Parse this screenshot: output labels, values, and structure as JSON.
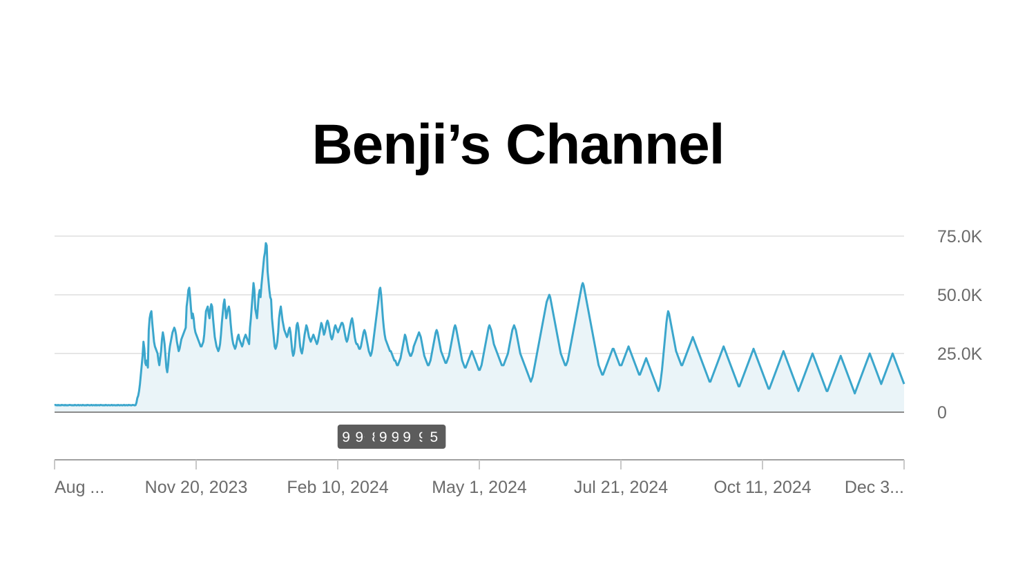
{
  "chart_data": {
    "type": "area",
    "title": "Benji’s Channel",
    "x_tick_labels": [
      "Aug ...",
      "Nov 20, 2023",
      "Feb 10, 2024",
      "May 1, 2024",
      "Jul 21, 2024",
      "Oct 11, 2024",
      "Dec 3..."
    ],
    "y_tick_labels": [
      "75.0K",
      "50.0K",
      "25.0K",
      "0"
    ],
    "y_tick_values": [
      75000,
      50000,
      25000,
      0
    ],
    "ylim": [
      0,
      75000
    ],
    "x_start": "2023-08-30",
    "grid": true,
    "line_color": "#3ba6cc",
    "fill_color": "#eaf4f8",
    "badges": [
      {
        "date": "2024-07-31",
        "label": "9+"
      },
      {
        "date": "2024-08-15",
        "label": "9+"
      },
      {
        "date": "2024-08-29",
        "label": "8"
      },
      {
        "date": "2024-09-11",
        "label": "9+"
      },
      {
        "date": "2024-09-25",
        "label": "9+"
      },
      {
        "date": "2024-10-08",
        "label": "9+"
      },
      {
        "date": "2024-10-21",
        "label": "9"
      },
      {
        "date": "2024-11-03",
        "label": "5"
      }
    ],
    "series": [
      {
        "values": [
          2900,
          3100,
          3000,
          2900,
          3100,
          2900,
          3000,
          2900,
          3100,
          3000,
          3000,
          2900,
          3100,
          2900,
          3000,
          2900,
          3000,
          3100,
          3000,
          3000,
          2900,
          3000,
          2900,
          3100,
          3000,
          2900,
          3000,
          3100,
          2900,
          3000,
          3000,
          2900,
          3100,
          3000,
          2900,
          3000,
          2900,
          3100,
          3000,
          3000,
          2900,
          3000,
          3100,
          2900,
          3000,
          3000,
          2900,
          3100,
          2900,
          3000,
          3000,
          2900,
          3100,
          3000,
          3000,
          2900,
          3000,
          2900,
          3100,
          3000,
          2900,
          3000,
          3000,
          2900,
          3000,
          3100,
          2900,
          3000,
          3000,
          2900,
          3000,
          2900,
          3100,
          3000,
          2900,
          3000,
          3000,
          2900,
          3000,
          3100,
          2900,
          3000,
          3000,
          2900,
          3100,
          3000,
          3000,
          2900,
          3000,
          3100,
          3000,
          2900,
          3000,
          4000,
          6000,
          7000,
          9000,
          12000,
          16000,
          20000,
          24000,
          30000,
          27000,
          21000,
          20000,
          22000,
          19000,
          35000,
          40000,
          42000,
          43000,
          38000,
          34000,
          30000,
          28000,
          27000,
          26000,
          25000,
          22000,
          20000,
          23000,
          26000,
          31000,
          34000,
          32000,
          29000,
          24000,
          19000,
          17000,
          20000,
          25000,
          28000,
          30000,
          32000,
          34000,
          35000,
          36000,
          35000,
          33000,
          30000,
          28000,
          26000,
          27000,
          29000,
          31000,
          32000,
          33000,
          34000,
          35000,
          36000,
          45000,
          48000,
          52000,
          53000,
          49000,
          44000,
          40000,
          42000,
          40000,
          36000,
          34000,
          33000,
          32000,
          31000,
          30000,
          29000,
          28000,
          28000,
          29000,
          30000,
          33000,
          38000,
          43000,
          44000,
          45000,
          42000,
          40000,
          44000,
          46000,
          45000,
          40000,
          36000,
          32000,
          30000,
          28000,
          27000,
          26000,
          27000,
          29000,
          33000,
          38000,
          42000,
          46000,
          48000,
          44000,
          40000,
          42000,
          44000,
          45000,
          43000,
          38000,
          34000,
          31000,
          29000,
          28000,
          27000,
          28000,
          30000,
          32000,
          33000,
          31000,
          30000,
          29000,
          28000,
          29000,
          31000,
          32000,
          33000,
          32000,
          31000,
          30000,
          29000,
          36000,
          40000,
          45000,
          50000,
          55000,
          52000,
          44000,
          42000,
          40000,
          45000,
          50000,
          52000,
          49000,
          54000,
          58000,
          62000,
          66000,
          68000,
          72000,
          71000,
          60000,
          56000,
          52000,
          49000,
          48000,
          40000,
          36000,
          32000,
          28000,
          27000,
          28000,
          30000,
          34000,
          40000,
          43000,
          45000,
          42000,
          39000,
          37000,
          35000,
          34000,
          33000,
          32000,
          33000,
          35000,
          36000,
          34000,
          30000,
          26000,
          24000,
          25000,
          28000,
          33000,
          37000,
          38000,
          36000,
          32000,
          28000,
          26000,
          25000,
          27000,
          30000,
          33000,
          35000,
          37000,
          36000,
          34000,
          32000,
          31000,
          30000,
          31000,
          32000,
          33000,
          32000,
          31000,
          30000,
          29000,
          30000,
          32000,
          34000,
          36000,
          38000,
          37000,
          35000,
          33000,
          34000,
          36000,
          38000,
          39000,
          38000,
          36000,
          34000,
          32000,
          31000,
          32000,
          34000,
          36000,
          37000,
          36000,
          35000,
          34000,
          35000,
          36000,
          37000,
          38000,
          38000,
          37000,
          35000,
          33000,
          31000,
          30000,
          31000,
          33000,
          35000,
          37000,
          39000,
          40000,
          38000,
          35000,
          32000,
          30000,
          29000,
          29000,
          28000,
          27000,
          27000,
          28000,
          30000,
          32000,
          34000,
          35000,
          34000,
          32000,
          30000,
          28000,
          26000,
          25000,
          24000,
          25000,
          27000,
          30000,
          33000,
          36000,
          39000,
          42000,
          45000,
          48000,
          52000,
          53000,
          50000,
          45000,
          40000,
          36000,
          33000,
          31000,
          30000,
          29000,
          28000,
          27000,
          26000,
          26000,
          25000,
          24000,
          23000,
          22000,
          22000,
          21000,
          20000,
          20000,
          21000,
          22000,
          23000,
          25000,
          27000,
          29000,
          31000,
          33000,
          32000,
          30000,
          28000,
          26000,
          25000,
          24000,
          24000,
          25000,
          26000,
          28000,
          29000,
          30000,
          31000,
          32000,
          33000,
          34000,
          33000,
          32000,
          30000,
          28000,
          26000,
          24000,
          23000,
          22000,
          21000,
          20000,
          20000,
          21000,
          22000,
          24000,
          26000,
          28000,
          30000,
          32000,
          34000,
          35000,
          34000,
          32000,
          30000,
          28000,
          26000,
          25000,
          24000,
          23000,
          22000,
          21000,
          21000,
          22000,
          23000,
          24000,
          26000,
          28000,
          30000,
          32000,
          34000,
          36000,
          37000,
          36000,
          34000,
          32000,
          30000,
          28000,
          26000,
          24000,
          22000,
          21000,
          20000,
          19000,
          19000,
          20000,
          21000,
          22000,
          23000,
          24000,
          25000,
          26000,
          25000,
          24000,
          23000,
          22000,
          21000,
          20000,
          19000,
          18000,
          18000,
          19000,
          20000,
          22000,
          24000,
          26000,
          28000,
          30000,
          32000,
          34000,
          36000,
          37000,
          36000,
          35000,
          33000,
          31000,
          29000,
          28000,
          27000,
          26000,
          25000,
          24000,
          23000,
          22000,
          21000,
          20000,
          20000,
          20000,
          21000,
          22000,
          23000,
          24000,
          25000,
          27000,
          29000,
          31000,
          33000,
          35000,
          36000,
          37000,
          36000,
          35000,
          33000,
          31000,
          29000,
          27000,
          25000,
          24000,
          23000,
          22000,
          21000,
          20000,
          19000,
          18000,
          17000,
          16000,
          15000,
          14000,
          13000,
          14000,
          15000,
          17000,
          19000,
          21000,
          23000,
          25000,
          27000,
          29000,
          31000,
          33000,
          35000,
          37000,
          39000,
          41000,
          43000,
          45000,
          47000,
          48000,
          49000,
          50000,
          49000,
          47000,
          45000,
          43000,
          41000,
          39000,
          37000,
          35000,
          33000,
          31000,
          29000,
          27000,
          25000,
          24000,
          23000,
          22000,
          21000,
          20000,
          20000,
          21000,
          22000,
          24000,
          26000,
          28000,
          30000,
          32000,
          34000,
          36000,
          38000,
          40000,
          42000,
          44000,
          46000,
          48000,
          50000,
          52000,
          54000,
          55000,
          54000,
          52000,
          50000,
          48000,
          46000,
          44000,
          42000,
          40000,
          38000,
          36000,
          34000,
          32000,
          30000,
          28000,
          26000,
          24000,
          22000,
          20000,
          19000,
          18000,
          17000,
          16000,
          16000,
          17000,
          18000,
          19000,
          20000,
          21000,
          22000,
          23000,
          24000,
          25000,
          26000,
          27000,
          27000,
          26000,
          25000,
          24000,
          23000,
          22000,
          21000,
          20000,
          20000,
          20000,
          21000,
          22000,
          23000,
          24000,
          25000,
          26000,
          27000,
          28000,
          27000,
          26000,
          25000,
          24000,
          23000,
          22000,
          21000,
          20000,
          19000,
          18000,
          17000,
          16000,
          16000,
          17000,
          18000,
          19000,
          20000,
          21000,
          22000,
          23000,
          22000,
          21000,
          20000,
          19000,
          18000,
          17000,
          16000,
          15000,
          14000,
          13000,
          12000,
          11000,
          10000,
          9000,
          10000,
          12000,
          15000,
          18000,
          22000,
          26000,
          30000,
          34000,
          38000,
          41000,
          43000,
          42000,
          40000,
          38000,
          36000,
          34000,
          32000,
          30000,
          28000,
          26000,
          25000,
          24000,
          23000,
          22000,
          21000,
          20000,
          20000,
          21000,
          22000,
          23000,
          24000,
          25000,
          26000,
          27000,
          28000,
          29000,
          30000,
          31000,
          32000,
          31000,
          30000,
          29000,
          28000,
          27000,
          26000,
          25000,
          24000,
          23000,
          22000,
          21000,
          20000,
          19000,
          18000,
          17000,
          16000,
          15000,
          14000,
          13000,
          13000,
          14000,
          15000,
          16000,
          17000,
          18000,
          19000,
          20000,
          21000,
          22000,
          23000,
          24000,
          25000,
          26000,
          27000,
          28000,
          27000,
          26000,
          25000,
          24000,
          23000,
          22000,
          21000,
          20000,
          19000,
          18000,
          17000,
          16000,
          15000,
          14000,
          13000,
          12000,
          11000,
          11000,
          12000,
          13000,
          14000,
          15000,
          16000,
          17000,
          18000,
          19000,
          20000,
          21000,
          22000,
          23000,
          24000,
          25000,
          26000,
          27000,
          26000,
          25000,
          24000,
          23000,
          22000,
          21000,
          20000,
          19000,
          18000,
          17000,
          16000,
          15000,
          14000,
          13000,
          12000,
          11000,
          10000,
          10000,
          11000,
          12000,
          13000,
          14000,
          15000,
          16000,
          17000,
          18000,
          19000,
          20000,
          21000,
          22000,
          23000,
          24000,
          25000,
          26000,
          25000,
          24000,
          23000,
          22000,
          21000,
          20000,
          19000,
          18000,
          17000,
          16000,
          15000,
          14000,
          13000,
          12000,
          11000,
          10000,
          9000,
          10000,
          11000,
          12000,
          13000,
          14000,
          15000,
          16000,
          17000,
          18000,
          19000,
          20000,
          21000,
          22000,
          23000,
          24000,
          25000,
          24000,
          23000,
          22000,
          21000,
          20000,
          19000,
          18000,
          17000,
          16000,
          15000,
          14000,
          13000,
          12000,
          11000,
          10000,
          9000,
          9000,
          10000,
          11000,
          12000,
          13000,
          14000,
          15000,
          16000,
          17000,
          18000,
          19000,
          20000,
          21000,
          22000,
          23000,
          24000,
          23000,
          22000,
          21000,
          20000,
          19000,
          18000,
          17000,
          16000,
          15000,
          14000,
          13000,
          12000,
          11000,
          10000,
          9000,
          8000,
          9000,
          10000,
          11000,
          12000,
          13000,
          14000,
          15000,
          16000,
          17000,
          18000,
          19000,
          20000,
          21000,
          22000,
          23000,
          24000,
          25000,
          24000,
          23000,
          22000,
          21000,
          20000,
          19000,
          18000,
          17000,
          16000,
          15000,
          14000,
          13000,
          12000,
          13000,
          14000,
          15000,
          16000,
          17000,
          18000,
          19000,
          20000,
          21000,
          22000,
          23000,
          24000,
          25000,
          24000,
          23000,
          22000,
          21000,
          20000,
          19000,
          18000,
          17000,
          16000,
          15000,
          14000,
          13000,
          12000
        ]
      }
    ]
  }
}
